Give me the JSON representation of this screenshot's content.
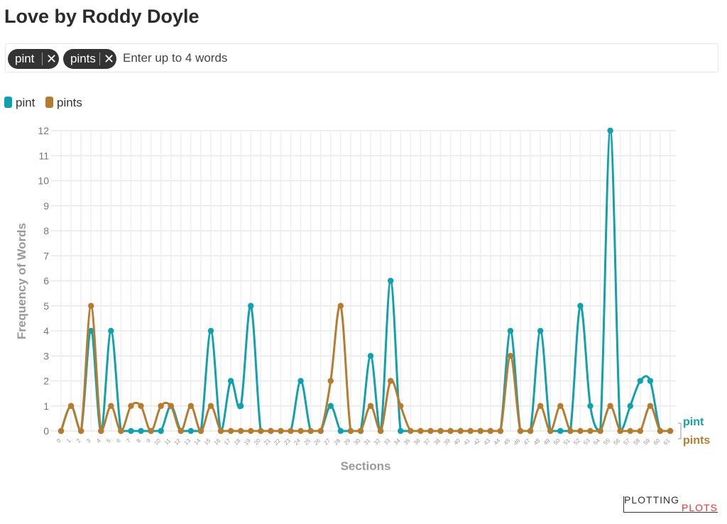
{
  "page": {
    "title": "Love by Roddy Doyle"
  },
  "search": {
    "chips": [
      {
        "label": "pint",
        "remove": "✕"
      },
      {
        "label": "pints",
        "remove": "✕"
      }
    ],
    "placeholder": "Enter up to 4 words"
  },
  "logo": {
    "line1": "PLOTTING",
    "line2": "PLOTS"
  },
  "chart_data": {
    "type": "line",
    "title": "Love by Roddy Doyle",
    "xlabel": "Sections",
    "ylabel": "Frequency of Words",
    "ylim": [
      0,
      12
    ],
    "y_ticks": [
      "0",
      "1",
      "2",
      "3",
      "4",
      "5",
      "6",
      "7",
      "8",
      "9",
      "10",
      "11",
      "12"
    ],
    "grid": true,
    "legend_position": "top-left",
    "x": [
      0,
      1,
      2,
      3,
      4,
      5,
      6,
      7,
      8,
      9,
      10,
      11,
      12,
      13,
      14,
      15,
      16,
      17,
      18,
      19,
      20,
      21,
      22,
      23,
      24,
      25,
      26,
      27,
      28,
      29,
      30,
      31,
      32,
      33,
      34,
      35,
      36,
      37,
      38,
      39,
      40,
      41,
      42,
      43,
      44,
      45,
      46,
      47,
      48,
      49,
      50,
      51,
      52,
      53,
      54,
      55,
      56,
      57,
      58,
      59,
      60,
      61
    ],
    "series": [
      {
        "name": "pint",
        "color": "#11a0ad",
        "values": [
          0,
          1,
          0,
          4,
          0,
          4,
          0,
          0,
          0,
          0,
          0,
          1,
          0,
          0,
          0,
          4,
          0,
          2,
          1,
          5,
          0,
          0,
          0,
          0,
          2,
          0,
          0,
          1,
          0,
          0,
          0,
          3,
          0,
          6,
          0,
          0,
          0,
          0,
          0,
          0,
          0,
          0,
          0,
          0,
          0,
          4,
          0,
          0,
          4,
          0,
          0,
          0,
          5,
          1,
          0,
          12,
          0,
          1,
          2,
          2,
          0,
          0
        ]
      },
      {
        "name": "pints",
        "color": "#b57c2f",
        "values": [
          0,
          1,
          0,
          5,
          0,
          1,
          0,
          1,
          1,
          0,
          1,
          1,
          0,
          1,
          0,
          1,
          0,
          0,
          0,
          0,
          0,
          0,
          0,
          0,
          0,
          0,
          0,
          2,
          5,
          0,
          0,
          1,
          0,
          2,
          1,
          0,
          0,
          0,
          0,
          0,
          0,
          0,
          0,
          0,
          0,
          3,
          0,
          0,
          1,
          0,
          1,
          0,
          0,
          0,
          0,
          1,
          0,
          0,
          0,
          1,
          0,
          0
        ]
      }
    ]
  }
}
